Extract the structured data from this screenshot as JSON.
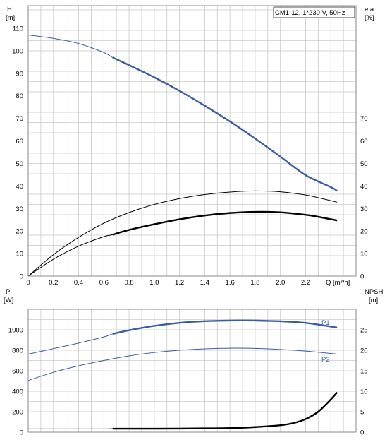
{
  "chart_data": [
    {
      "type": "line",
      "title": "CM1-12, 1*230 V, 50Hz",
      "x_axis": {
        "label": "Q [m³/h]",
        "range": [
          0,
          2.6
        ],
        "ticks": [
          "0",
          "0.2",
          "0.4",
          "0.6",
          "0.8",
          "1.0",
          "1.2",
          "1.4",
          "1.6",
          "1.8",
          "2.0",
          "2.2"
        ]
      },
      "y_axis_left": {
        "label_top": "H",
        "label_unit": "[m]",
        "range": [
          0,
          120
        ],
        "ticks": [
          "0",
          "10",
          "20",
          "30",
          "40",
          "50",
          "60",
          "70",
          "80",
          "90",
          "100",
          "110"
        ]
      },
      "y_axis_right": {
        "label_top": "eta",
        "label_unit": "[%]",
        "range": [
          0,
          120
        ],
        "ticks": [
          "0",
          "10",
          "20",
          "30",
          "40",
          "50",
          "60",
          "70"
        ]
      },
      "grid": true,
      "series": [
        {
          "axis": "left",
          "color": "#3a5da0",
          "bold_from": 0.67,
          "x": [
            0,
            0.2,
            0.4,
            0.6,
            0.67,
            0.8,
            1.0,
            1.2,
            1.4,
            1.6,
            1.8,
            2.0,
            2.2,
            2.4,
            2.45
          ],
          "y": [
            107,
            105.5,
            103.2,
            99.2,
            97.0,
            93.6,
            88.2,
            82.2,
            75.6,
            68.6,
            61.0,
            53.0,
            44.8,
            39.5,
            37.8
          ]
        },
        {
          "axis": "right",
          "color": "#000000",
          "bold_from": 99,
          "x": [
            0,
            0.2,
            0.4,
            0.6,
            0.8,
            1.0,
            1.2,
            1.4,
            1.6,
            1.8,
            2.0,
            2.2,
            2.3,
            2.45
          ],
          "y": [
            0,
            9.5,
            17.2,
            23.5,
            28.2,
            31.8,
            34.4,
            36.2,
            37.3,
            37.8,
            37.4,
            36.0,
            34.8,
            32.8
          ]
        },
        {
          "axis": "right",
          "color": "#000000",
          "bold_from": 0.67,
          "x": [
            0,
            0.2,
            0.4,
            0.6,
            0.67,
            0.8,
            1.0,
            1.2,
            1.4,
            1.6,
            1.8,
            2.0,
            2.2,
            2.3,
            2.45
          ],
          "y": [
            0,
            7.5,
            13.3,
            17.5,
            18.4,
            20.5,
            23.0,
            25.2,
            26.9,
            28.0,
            28.5,
            28.3,
            27.2,
            26.3,
            24.7
          ]
        }
      ]
    },
    {
      "type": "line",
      "x_axis": {
        "range": [
          0,
          2.6
        ]
      },
      "y_axis_left": {
        "label_top": "P",
        "label_unit": "[W]",
        "range": [
          0,
          1200
        ],
        "ticks": [
          "0",
          "200",
          "400",
          "600",
          "800",
          "1000"
        ]
      },
      "y_axis_right": {
        "label_top": "NPSH",
        "label_unit": "[m]",
        "range": [
          0,
          30
        ],
        "ticks": [
          "0",
          "5",
          "10",
          "15",
          "20",
          "25"
        ]
      },
      "grid": true,
      "series": [
        {
          "name": "P1",
          "axis": "left",
          "color": "#3a5da0",
          "bold_from": 0.67,
          "x": [
            0,
            0.2,
            0.4,
            0.6,
            0.67,
            0.8,
            1.0,
            1.2,
            1.4,
            1.6,
            1.7,
            1.8,
            2.0,
            2.2,
            2.45
          ],
          "y": [
            762,
            816,
            870,
            930,
            960,
            995,
            1038,
            1068,
            1084,
            1090,
            1091,
            1090,
            1083,
            1068,
            1022
          ]
        },
        {
          "name": "P2",
          "axis": "left",
          "color": "#3a5da0",
          "bold_from": 99,
          "x": [
            0,
            0.2,
            0.4,
            0.6,
            0.8,
            1.0,
            1.2,
            1.4,
            1.6,
            1.8,
            2.0,
            2.2,
            2.45
          ],
          "y": [
            505,
            585,
            648,
            700,
            745,
            778,
            800,
            814,
            820,
            818,
            808,
            792,
            762
          ]
        },
        {
          "axis": "right",
          "color": "#000000",
          "bold_from": 0.67,
          "x": [
            0,
            0.2,
            0.4,
            0.6,
            0.67,
            0.8,
            1.0,
            1.2,
            1.4,
            1.6,
            1.8,
            2.0,
            2.1,
            2.2,
            2.3,
            2.4,
            2.45
          ],
          "y": [
            0.8,
            0.8,
            0.8,
            0.8,
            0.85,
            0.85,
            0.85,
            0.88,
            0.93,
            1.0,
            1.25,
            1.7,
            2.2,
            3.2,
            5.0,
            8.0,
            9.7
          ]
        }
      ]
    }
  ]
}
